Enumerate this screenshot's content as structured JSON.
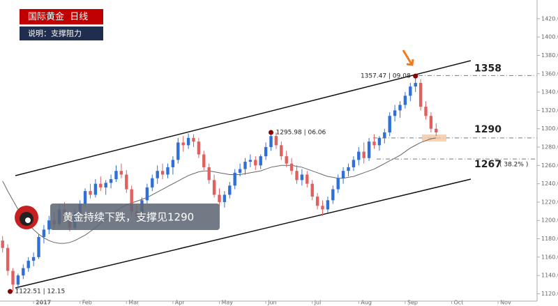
{
  "chart_data": {
    "type": "candlestick",
    "title": "国际黄金  日线",
    "subtitle": "说明：支撑阻力",
    "annotation": "黄金持续下跌，支撑见1290",
    "up_color": "#2f6fd6",
    "down_color": "#e06060",
    "categories": [
      null,
      null,
      null,
      null,
      null,
      null,
      "2017",
      null,
      null,
      null,
      null,
      null,
      null,
      null,
      null,
      "Feb",
      null,
      null,
      null,
      null,
      null,
      null,
      null,
      null,
      "Mar",
      null,
      null,
      null,
      null,
      null,
      null,
      null,
      null,
      "Apr",
      null,
      null,
      null,
      null,
      null,
      null,
      null,
      null,
      "May",
      null,
      null,
      null,
      null,
      null,
      null,
      null,
      null,
      "Jun",
      null,
      null,
      null,
      null,
      null,
      null,
      null,
      null,
      "Jul",
      null,
      null,
      null,
      null,
      null,
      null,
      null,
      null,
      "Aug",
      null,
      null,
      null,
      null,
      null,
      null,
      null,
      null,
      "Sep",
      null,
      null,
      null,
      null,
      null,
      null,
      null,
      null,
      "Oct",
      null,
      null,
      null,
      null,
      null,
      null,
      null,
      null,
      "Nov",
      null,
      null,
      null
    ],
    "ohlc": [
      [
        1178,
        1183,
        1165,
        1170
      ],
      [
        1170,
        1174,
        1140,
        1145
      ],
      [
        1145,
        1148,
        1122.51,
        1130
      ],
      [
        1130,
        1142,
        1125,
        1140
      ],
      [
        1140,
        1152,
        1136,
        1148
      ],
      [
        1148,
        1160,
        1144,
        1156
      ],
      [
        1156,
        1165,
        1150,
        1160
      ],
      [
        1160,
        1185,
        1158,
        1182
      ],
      [
        1182,
        1195,
        1175,
        1190
      ],
      [
        1190,
        1205,
        1185,
        1200
      ],
      [
        1200,
        1210,
        1192,
        1196
      ],
      [
        1196,
        1218,
        1194,
        1212
      ],
      [
        1212,
        1220,
        1198,
        1202
      ],
      [
        1202,
        1210,
        1188,
        1192
      ],
      [
        1192,
        1212,
        1190,
        1208
      ],
      [
        1208,
        1222,
        1205,
        1218
      ],
      [
        1218,
        1235,
        1215,
        1232
      ],
      [
        1232,
        1240,
        1224,
        1228
      ],
      [
        1228,
        1245,
        1225,
        1240
      ],
      [
        1240,
        1248,
        1232,
        1236
      ],
      [
        1236,
        1244,
        1228,
        1241
      ],
      [
        1241,
        1250,
        1235,
        1245
      ],
      [
        1245,
        1260,
        1242,
        1254
      ],
      [
        1254,
        1262,
        1246,
        1250
      ],
      [
        1250,
        1255,
        1230,
        1234
      ],
      [
        1234,
        1238,
        1205,
        1210
      ],
      [
        1210,
        1218,
        1198,
        1204
      ],
      [
        1204,
        1225,
        1200,
        1222
      ],
      [
        1222,
        1240,
        1218,
        1236
      ],
      [
        1236,
        1250,
        1232,
        1246
      ],
      [
        1246,
        1260,
        1240,
        1254
      ],
      [
        1254,
        1262,
        1245,
        1250
      ],
      [
        1250,
        1262,
        1246,
        1258
      ],
      [
        1258,
        1270,
        1250,
        1266
      ],
      [
        1266,
        1290,
        1262,
        1285
      ],
      [
        1285,
        1292,
        1275,
        1282
      ],
      [
        1282,
        1295,
        1278,
        1290
      ],
      [
        1290,
        1294,
        1280,
        1286
      ],
      [
        1286,
        1290,
        1268,
        1272
      ],
      [
        1272,
        1276,
        1255,
        1258
      ],
      [
        1258,
        1262,
        1240,
        1244
      ],
      [
        1244,
        1250,
        1225,
        1228
      ],
      [
        1228,
        1235,
        1215,
        1220
      ],
      [
        1220,
        1232,
        1214,
        1228
      ],
      [
        1228,
        1242,
        1224,
        1238
      ],
      [
        1238,
        1256,
        1234,
        1252
      ],
      [
        1252,
        1262,
        1248,
        1256
      ],
      [
        1256,
        1268,
        1250,
        1264
      ],
      [
        1264,
        1272,
        1258,
        1266
      ],
      [
        1266,
        1270,
        1255,
        1260
      ],
      [
        1260,
        1272,
        1256,
        1270
      ],
      [
        1270,
        1285,
        1266,
        1280
      ],
      [
        1280,
        1295.98,
        1276,
        1292
      ],
      [
        1292,
        1296,
        1278,
        1282
      ],
      [
        1282,
        1286,
        1266,
        1270
      ],
      [
        1270,
        1276,
        1258,
        1262
      ],
      [
        1262,
        1268,
        1250,
        1254
      ],
      [
        1254,
        1260,
        1240,
        1244
      ],
      [
        1244,
        1256,
        1238,
        1250
      ],
      [
        1250,
        1254,
        1236,
        1240
      ],
      [
        1240,
        1244,
        1222,
        1226
      ],
      [
        1226,
        1230,
        1212,
        1216
      ],
      [
        1216,
        1222,
        1205,
        1212
      ],
      [
        1212,
        1226,
        1208,
        1222
      ],
      [
        1222,
        1238,
        1218,
        1234
      ],
      [
        1234,
        1250,
        1230,
        1246
      ],
      [
        1246,
        1258,
        1240,
        1254
      ],
      [
        1254,
        1262,
        1248,
        1258
      ],
      [
        1258,
        1270,
        1254,
        1266
      ],
      [
        1266,
        1280,
        1260,
        1275
      ],
      [
        1275,
        1285,
        1262,
        1268
      ],
      [
        1268,
        1290,
        1265,
        1286
      ],
      [
        1286,
        1294,
        1278,
        1282
      ],
      [
        1282,
        1292,
        1276,
        1290
      ],
      [
        1290,
        1300,
        1284,
        1296
      ],
      [
        1296,
        1318,
        1292,
        1314
      ],
      [
        1314,
        1326,
        1308,
        1320
      ],
      [
        1320,
        1330,
        1312,
        1326
      ],
      [
        1326,
        1340,
        1322,
        1336
      ],
      [
        1336,
        1350,
        1330,
        1346
      ],
      [
        1346,
        1357.47,
        1340,
        1350
      ],
      [
        1350,
        1354,
        1320,
        1324
      ],
      [
        1324,
        1330,
        1310,
        1314
      ],
      [
        1314,
        1318,
        1296,
        1300
      ],
      [
        1300,
        1306,
        1292,
        1296
      ],
      null,
      null,
      null,
      null,
      null,
      null,
      null,
      null,
      null,
      null,
      null,
      null,
      null,
      null,
      null
    ],
    "ma": {
      "color": "#666666",
      "values": [
        1243,
        1232,
        1222,
        1212,
        1204,
        1196,
        1190,
        1185,
        1181,
        1178,
        1176,
        1175,
        1175,
        1176,
        1178,
        1181,
        1184,
        1188,
        1192,
        1197,
        1201,
        1206,
        1210,
        1214,
        1217,
        1219,
        1221,
        1223,
        1225,
        1228,
        1231,
        1234,
        1237,
        1240,
        1243,
        1246,
        1249,
        1251,
        1253,
        1254,
        1254,
        1253,
        1252,
        1251,
        1250,
        1250,
        1250,
        1251,
        1252,
        1253,
        1254,
        1256,
        1258,
        1259,
        1260,
        1260,
        1260,
        1259,
        1258,
        1256,
        1254,
        1252,
        1250,
        1248,
        1247,
        1246,
        1246,
        1247,
        1248,
        1250,
        1252,
        1254,
        1256,
        1259,
        1262,
        1265,
        1268,
        1271,
        1275,
        1279,
        1282,
        1285,
        1287,
        1289,
        1290,
        null,
        null,
        null,
        null,
        null,
        null,
        null,
        null,
        null,
        null,
        null,
        null,
        null,
        null,
        null
      ]
    },
    "levels": [
      1358,
      1290,
      1267
    ],
    "level_note": "( 38.2% )",
    "notes": [
      "1357.47 | 09.08",
      "1295.98 | 06.06",
      "1122.51 | 12.15"
    ],
    "ylim": [
      1112,
      1429
    ],
    "yticks": [
      {
        "value": 1120,
        "label": "1120.00"
      },
      {
        "value": 1140,
        "label": "1140.00"
      },
      {
        "value": 1160,
        "label": "1160.00"
      },
      {
        "value": 1180,
        "label": "1180.00"
      },
      {
        "value": 1200,
        "label": "1200.00"
      },
      {
        "value": 1220,
        "label": "1220.00"
      },
      {
        "value": 1240,
        "label": "1240.00"
      },
      {
        "value": 1260,
        "label": "1260.00"
      },
      {
        "value": 1280,
        "label": "1280.00"
      },
      {
        "value": 1300,
        "label": "1300.00"
      },
      {
        "value": 1320,
        "label": "1320.00"
      },
      {
        "value": 1340,
        "label": "1340.00"
      },
      {
        "value": 1360,
        "label": "1360.00"
      },
      {
        "value": 1380,
        "label": "1380.00"
      },
      {
        "value": 1400,
        "label": "1400.00"
      },
      {
        "value": 1420,
        "label": "1420.00"
      }
    ]
  }
}
